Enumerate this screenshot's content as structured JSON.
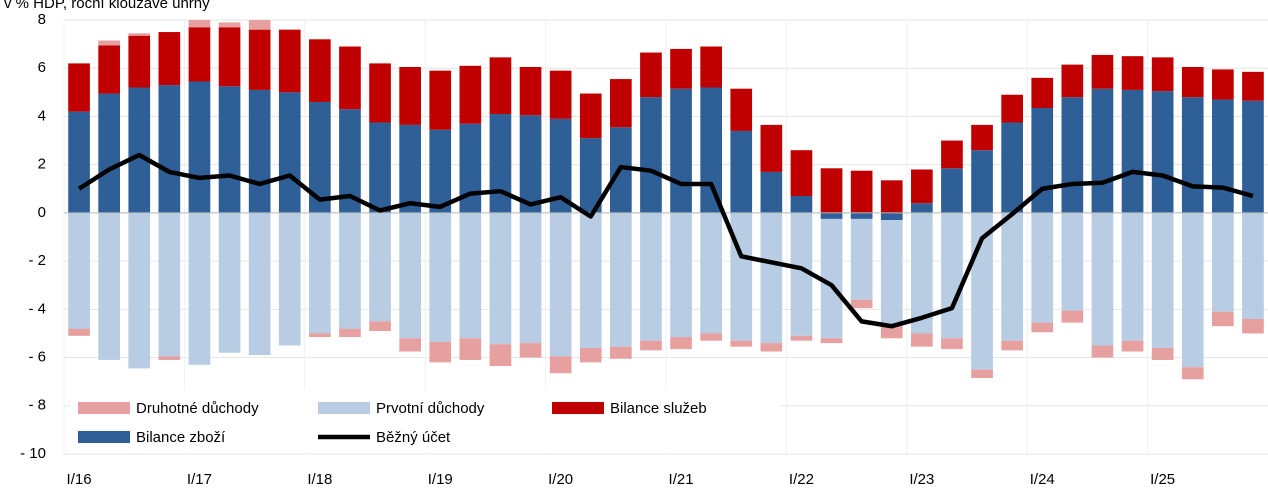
{
  "chart_data": {
    "type": "stacked-bar-line",
    "subtitle": "v % HDP, roční klouzavé úhrny",
    "categories": [
      "I/16",
      null,
      null,
      null,
      "I/17",
      null,
      null,
      null,
      "I/18",
      null,
      null,
      null,
      "I/19",
      null,
      null,
      null,
      "I/20",
      null,
      null,
      null,
      "I/21",
      null,
      null,
      null,
      "I/22",
      null,
      null,
      null,
      "I/23",
      null,
      null,
      null,
      "I/24",
      null,
      null,
      null,
      "I/25",
      null,
      null,
      null
    ],
    "series": [
      {
        "name": "Druhotné důchody",
        "color": "#e6a0a0",
        "kind": "bar",
        "values": [
          -0.3,
          0.2,
          0.1,
          -0.15,
          0.3,
          0.2,
          0.4,
          0,
          -0.15,
          -0.35,
          -0.4,
          -0.55,
          -0.85,
          -0.9,
          -0.9,
          -0.6,
          -0.7,
          -0.6,
          -0.5,
          -0.4,
          -0.5,
          -0.3,
          -0.25,
          -0.35,
          -0.2,
          -0.2,
          -0.35,
          -0.5,
          -0.55,
          -0.45,
          -0.35,
          -0.4,
          -0.4,
          -0.5,
          -0.5,
          -0.45,
          -0.5,
          -0.5,
          -0.6,
          -0.6
        ]
      },
      {
        "name": "Prvotní důchody",
        "color": "#b8cce4",
        "kind": "bar",
        "values": [
          -4.8,
          -6.1,
          -6.45,
          -5.95,
          -6.3,
          -5.8,
          -5.9,
          -5.5,
          -5.0,
          -4.8,
          -4.5,
          -5.2,
          -5.35,
          -5.2,
          -5.45,
          -5.4,
          -5.95,
          -5.6,
          -5.55,
          -5.3,
          -5.15,
          -5.0,
          -5.3,
          -5.4,
          -5.1,
          -4.95,
          -3.35,
          -4.4,
          -5.0,
          -5.2,
          -6.5,
          -5.3,
          -4.55,
          -4.05,
          -5.5,
          -5.3,
          -5.6,
          -6.4,
          -4.1,
          -4.4
        ]
      },
      {
        "name": "Bilance služeb",
        "color": "#c00000",
        "kind": "bar",
        "values": [
          2.0,
          2.0,
          2.15,
          2.2,
          2.25,
          2.45,
          2.5,
          2.6,
          2.6,
          2.6,
          2.45,
          2.4,
          2.45,
          2.4,
          2.35,
          2.0,
          2.0,
          1.85,
          2.0,
          1.85,
          1.65,
          1.7,
          1.75,
          1.95,
          1.9,
          1.85,
          1.75,
          1.35,
          1.4,
          1.15,
          1.05,
          1.15,
          1.25,
          1.35,
          1.4,
          1.4,
          1.4,
          1.25,
          1.25,
          1.2
        ]
      },
      {
        "name": "Bilance zboží",
        "color": "#2f5f97",
        "kind": "bar",
        "values": [
          4.2,
          4.95,
          5.2,
          5.3,
          5.45,
          5.25,
          5.1,
          5.0,
          4.6,
          4.3,
          3.75,
          3.65,
          3.45,
          3.7,
          4.1,
          4.05,
          3.9,
          3.1,
          3.55,
          4.8,
          5.15,
          5.2,
          3.4,
          1.7,
          0.7,
          -0.25,
          -0.25,
          -0.3,
          0.4,
          1.85,
          2.6,
          3.75,
          4.35,
          4.8,
          5.15,
          5.1,
          5.05,
          4.8,
          4.7,
          4.65
        ]
      },
      {
        "name": "Běžný účet",
        "color": "#000000",
        "kind": "line",
        "values": [
          1.0,
          1.8,
          2.4,
          1.7,
          1.45,
          1.55,
          1.2,
          1.55,
          0.55,
          0.7,
          0.1,
          0.4,
          0.25,
          0.8,
          0.9,
          0.35,
          0.65,
          -0.15,
          1.9,
          1.75,
          1.2,
          1.2,
          -1.8,
          -2.05,
          -2.3,
          -3.0,
          -4.5,
          -4.7,
          -4.35,
          -3.95,
          -1.05,
          -0.05,
          1.0,
          1.2,
          1.25,
          1.7,
          1.55,
          1.1,
          1.05,
          0.7
        ]
      }
    ],
    "ylim": [
      -10,
      8
    ],
    "yticks": [
      {
        "value": -10,
        "label": "- 10"
      },
      {
        "value": -8,
        "label": "- 8"
      },
      {
        "value": -6,
        "label": "- 6"
      },
      {
        "value": -4,
        "label": "- 4"
      },
      {
        "value": -2,
        "label": "- 2"
      },
      0,
      2,
      4,
      6,
      8
    ],
    "grid": true
  }
}
